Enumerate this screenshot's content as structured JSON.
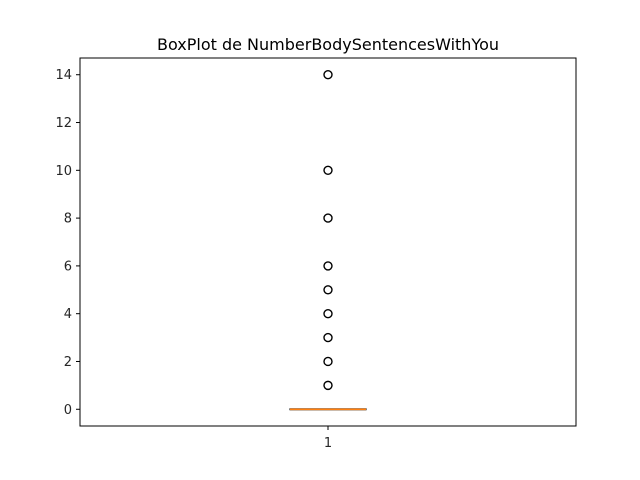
{
  "chart_data": {
    "type": "box",
    "title": "BoxPlot de NumberBodySentencesWithYou",
    "xlabel": "",
    "ylabel": "",
    "categories": [
      "1"
    ],
    "ylim": [
      -0.7,
      14.7
    ],
    "yticks": [
      0,
      2,
      4,
      6,
      8,
      10,
      12,
      14
    ],
    "grid": false,
    "box": {
      "min": 0,
      "q1": 0,
      "median": 0,
      "q3": 0,
      "max": 0
    },
    "outliers": [
      1,
      2,
      3,
      4,
      5,
      6,
      8,
      10,
      14
    ],
    "colors": {
      "median": "#ff7f0e",
      "box": "#000000",
      "outlier": "#000000"
    }
  }
}
